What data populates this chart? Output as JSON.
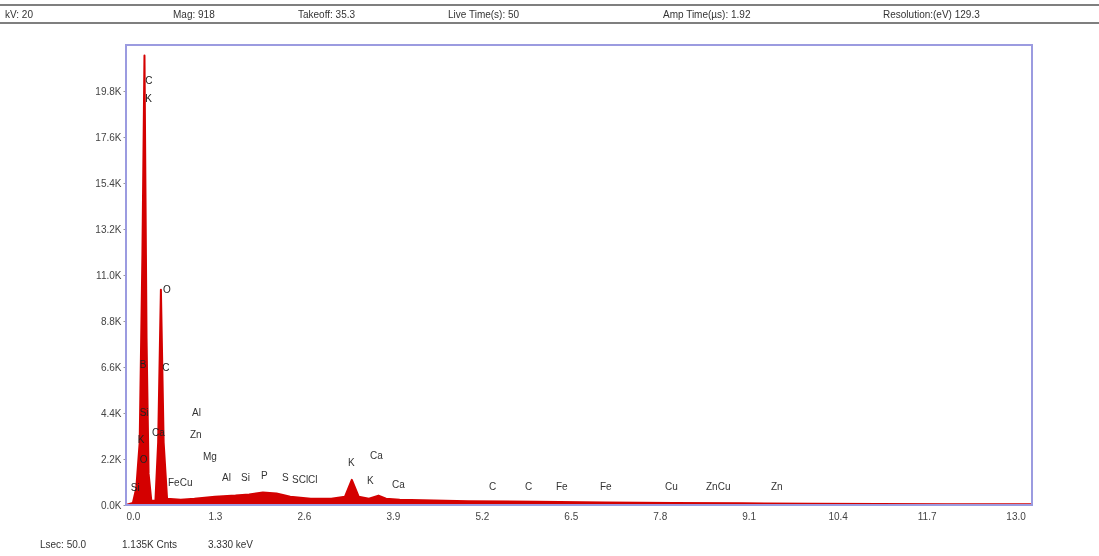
{
  "chart_data": {
    "type": "area",
    "x": [
      0,
      0.1,
      0.15,
      0.2,
      0.24,
      0.27,
      0.3,
      0.33,
      0.37,
      0.43,
      0.47,
      0.51,
      0.55,
      0.6,
      0.8,
      1.0,
      1.3,
      1.6,
      1.8,
      2.0,
      2.2,
      2.4,
      2.7,
      3.0,
      3.2,
      3.3,
      3.4,
      3.55,
      3.69,
      3.8,
      4.0,
      5,
      6,
      7,
      8,
      9,
      10,
      11,
      12,
      13,
      13.24
    ],
    "series": [
      {
        "color": "#d40000",
        "values": [
          0,
          100,
          800,
          3000,
          12000,
          21500,
          8000,
          1500,
          200,
          200,
          3000,
          10300,
          3000,
          300,
          250,
          300,
          400,
          450,
          500,
          600,
          550,
          400,
          300,
          300,
          400,
          1200,
          400,
          300,
          450,
          300,
          250,
          180,
          150,
          120,
          100,
          80,
          60,
          50,
          40,
          30,
          30
        ]
      }
    ],
    "xlim": [
      0,
      13.24
    ],
    "xticks": [
      {
        "value": 0,
        "label": "0.0"
      },
      1.3,
      2.6,
      3.9,
      5.2,
      6.5,
      7.8,
      9.1,
      10.4,
      11.7,
      {
        "value": 13,
        "label": "13.0"
      }
    ],
    "ylim": [
      0,
      22000
    ],
    "yticks": [
      {
        "value": 0,
        "label": "0.0K"
      },
      {
        "value": 2200,
        "label": "2.2K"
      },
      {
        "value": 4400,
        "label": "4.4K"
      },
      {
        "value": 6600,
        "label": "6.6K"
      },
      {
        "value": 8800,
        "label": "8.8K"
      },
      {
        "value": 11000,
        "label": "11.0K"
      },
      {
        "value": 13200,
        "label": "13.2K"
      },
      {
        "value": 15400,
        "label": "15.4K"
      },
      {
        "value": 17600,
        "label": "17.6K"
      },
      {
        "value": 19800,
        "label": "19.8K"
      }
    ],
    "grid": false,
    "annotations": [
      "kV: 20",
      "Mag: 918",
      "Takeoff: 35.3",
      "Live Time(s): 50",
      "Amp Time(µs): 1.92",
      "Resolution:(eV) 129.3",
      "Lsec: 50.0",
      "1.135K Cnts",
      "3.330 keV",
      {
        "text": "C",
        "x": 0.28,
        "y": 20300
      },
      {
        "text": "K",
        "x": 0.28,
        "y": 19400
      },
      {
        "text": "O",
        "x": 0.54,
        "y": 10300
      },
      {
        "text": "B",
        "x": 0.2,
        "y": 6700
      },
      {
        "text": "C",
        "x": 0.53,
        "y": 6550
      },
      {
        "text": "Si",
        "x": 0.2,
        "y": 4400
      },
      {
        "text": "K",
        "x": 0.17,
        "y": 3100
      },
      {
        "text": "Ca",
        "x": 0.38,
        "y": 3450
      },
      {
        "text": "O",
        "x": 0.2,
        "y": 2150
      },
      {
        "text": "Si",
        "x": 0.07,
        "y": 800
      },
      "Al",
      "Zn",
      "Mg",
      "FeCu",
      "Al",
      "Si",
      "P",
      "S",
      "SClCl",
      "K",
      "Ca",
      "K",
      "Ca",
      "C",
      "C",
      "Fe",
      "Fe",
      "Cu",
      "ZnCu",
      "Zn"
    ]
  }
}
